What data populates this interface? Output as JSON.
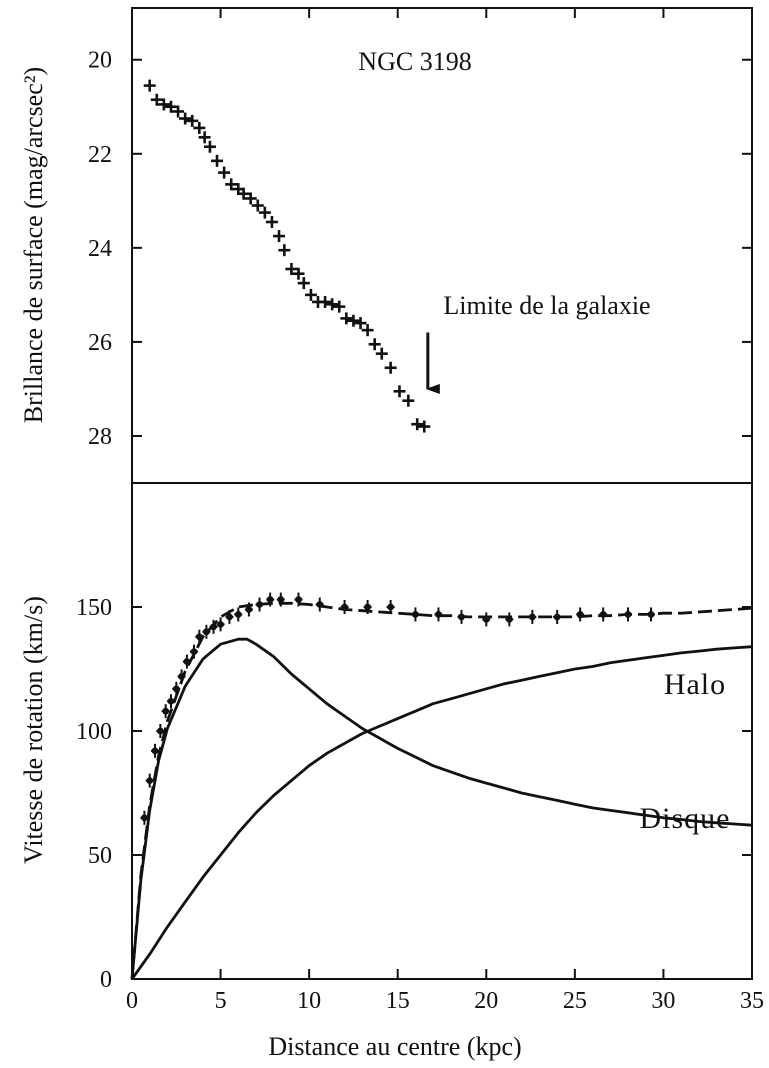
{
  "figure": {
    "xlabel": "Distance au centre (kpc)"
  },
  "chart_data": [
    {
      "type": "scatter",
      "title": "NGC 3198",
      "xlabel": "",
      "ylabel": "Brillance de surface (mag/arcsec²)",
      "xlim": [
        0,
        35
      ],
      "ylim": [
        29,
        18.9
      ],
      "y_inverted": true,
      "x_ticks": [],
      "y_ticks": [
        20,
        22,
        24,
        26,
        28
      ],
      "annotation": {
        "text": "Limite de la galaxie",
        "x": 16.7,
        "y_from": 25.8,
        "y_to": 27.0
      },
      "series": [
        {
          "marker": "plus",
          "x": [
            1.0,
            1.4,
            1.8,
            2.2,
            2.6,
            3.0,
            3.4,
            3.8,
            4.1,
            4.4,
            4.8,
            5.2,
            5.6,
            6.0,
            6.3,
            6.7,
            7.1,
            7.5,
            7.9,
            8.3,
            8.6,
            9.0,
            9.4,
            9.7,
            10.1,
            10.5,
            10.9,
            11.3,
            11.7,
            12.1,
            12.5,
            12.9,
            13.3,
            13.7,
            14.1,
            14.6,
            15.1,
            15.6,
            16.1,
            16.5
          ],
          "y": [
            20.55,
            20.85,
            20.95,
            21.0,
            21.1,
            21.25,
            21.3,
            21.45,
            21.65,
            21.85,
            22.15,
            22.4,
            22.65,
            22.75,
            22.85,
            22.95,
            23.1,
            23.25,
            23.45,
            23.75,
            24.05,
            24.45,
            24.55,
            24.75,
            25.0,
            25.15,
            25.15,
            25.2,
            25.25,
            25.5,
            25.55,
            25.6,
            25.75,
            26.05,
            26.25,
            26.55,
            27.05,
            27.25,
            27.75,
            27.8
          ]
        }
      ]
    },
    {
      "type": "line",
      "title": "",
      "xlabel": "Distance au centre (kpc)",
      "ylabel": "Vitesse de rotation (km/s)",
      "xlim": [
        0,
        35
      ],
      "ylim": [
        0,
        200
      ],
      "x_ticks": [
        0,
        5,
        10,
        15,
        20,
        25,
        30,
        35
      ],
      "y_ticks": [
        0,
        50,
        100,
        150
      ],
      "series": [
        {
          "name": "Halo",
          "style": "solid",
          "x": [
            0,
            1,
            2,
            3,
            4,
            5,
            6,
            7,
            8,
            9,
            10,
            11,
            12,
            13,
            14,
            15,
            16,
            17,
            18,
            19,
            20,
            21,
            22,
            23,
            24,
            25,
            26,
            27,
            28,
            29,
            30,
            31,
            32,
            33,
            34,
            35
          ],
          "y": [
            0,
            10,
            21,
            31,
            41,
            50,
            59,
            67,
            74,
            80,
            86,
            91,
            95,
            99,
            102,
            105,
            108,
            111,
            113,
            115,
            117,
            119,
            120.5,
            122,
            123.5,
            125,
            126,
            127.5,
            128.5,
            129.5,
            130.5,
            131.5,
            132.2,
            133,
            133.5,
            134
          ]
        },
        {
          "name": "Disque",
          "style": "solid",
          "x": [
            0,
            0.5,
            1,
            1.5,
            2,
            3,
            4,
            5,
            6,
            6.5,
            7,
            8,
            9,
            10,
            11,
            12,
            13,
            14,
            15,
            16,
            17,
            18,
            19,
            20,
            21,
            22,
            23,
            24,
            25,
            26,
            27,
            28,
            29,
            30,
            31,
            32,
            33,
            34,
            35
          ],
          "y": [
            0,
            40,
            68,
            88,
            101,
            118,
            129,
            135,
            137,
            137,
            135,
            130,
            123,
            117,
            111,
            106,
            101,
            97,
            93,
            89.5,
            86,
            83.5,
            81,
            79,
            77,
            75,
            73.5,
            72,
            70.5,
            69,
            68,
            67,
            66,
            65,
            64.3,
            63.5,
            63,
            62.5,
            62
          ]
        },
        {
          "name": "",
          "style": "dashed",
          "x": [
            0,
            0.5,
            1,
            1.5,
            2,
            3,
            4,
            5,
            6,
            7,
            8,
            9,
            10,
            11,
            12,
            13,
            14,
            15,
            16,
            17,
            18,
            19,
            20,
            21,
            22,
            23,
            24,
            25,
            26,
            27,
            28,
            29,
            30,
            31,
            32,
            33,
            34,
            35
          ],
          "y": [
            0,
            42,
            70,
            90,
            104,
            124,
            138,
            146,
            150,
            151,
            151.5,
            151.5,
            151,
            150,
            149,
            148.5,
            148,
            147.5,
            147,
            146.5,
            146.5,
            146,
            146,
            146,
            146,
            146,
            146,
            146,
            146.5,
            146.5,
            147,
            147,
            147.5,
            147.5,
            148,
            148.5,
            149,
            149.5
          ]
        },
        {
          "name": "",
          "style": "markers",
          "x": [
            0.7,
            1.0,
            1.3,
            1.6,
            1.9,
            2.2,
            2.5,
            2.8,
            3.1,
            3.5,
            3.8,
            4.2,
            4.6,
            5.0,
            5.5,
            6.0,
            6.6,
            7.2,
            7.8,
            8.4,
            9.4,
            10.6,
            12.0,
            13.3,
            14.6,
            16.0,
            17.3,
            18.6,
            20.0,
            21.3,
            22.6,
            24.0,
            25.3,
            26.6,
            28.0,
            29.3
          ],
          "y": [
            65,
            80,
            92,
            100,
            108,
            112,
            117,
            122,
            128,
            132,
            138,
            140,
            142,
            143,
            146,
            147,
            149,
            151,
            153,
            153,
            153,
            151,
            150,
            150,
            150,
            147,
            147,
            146,
            145,
            145,
            146,
            146,
            147,
            147,
            147,
            147
          ]
        }
      ],
      "labels": [
        {
          "text": "Halo",
          "x": 32.7,
          "y": 120
        },
        {
          "text": "Disque",
          "x": 32.4,
          "y": 53
        }
      ]
    }
  ]
}
